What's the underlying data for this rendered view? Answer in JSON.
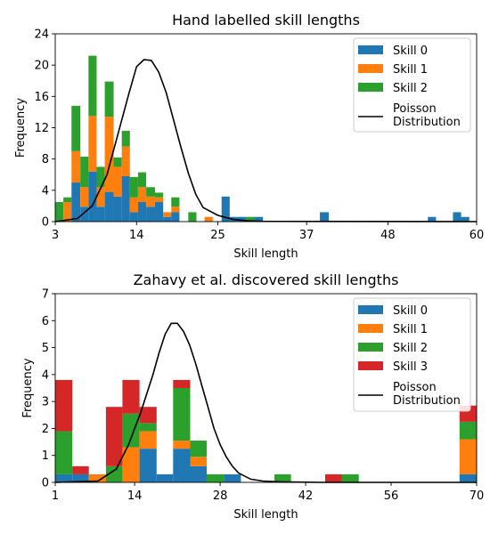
{
  "chart_data": [
    {
      "type": "bar",
      "stacked": true,
      "title": "Hand labelled skill lengths",
      "xlabel": "Skill length",
      "ylabel": "Frequency",
      "xlim": [
        3,
        60
      ],
      "ylim": [
        0,
        24
      ],
      "xticks": [
        "3",
        "14",
        "25",
        "37",
        "48",
        "60"
      ],
      "yticks": [
        "0",
        "4",
        "8",
        "12",
        "16",
        "20",
        "24"
      ],
      "legend_position": "top-right",
      "legend": [
        "Skill 0",
        "Skill 1",
        "Skill 2",
        "Poisson\nDistribution"
      ],
      "bins": [
        {
          "x0": 3.0,
          "x1": 4.1,
          "values": [
            0,
            0,
            2.5
          ]
        },
        {
          "x0": 4.1,
          "x1": 5.2,
          "values": [
            0,
            2.5,
            0.6
          ]
        },
        {
          "x0": 5.2,
          "x1": 6.4,
          "values": [
            5.0,
            4.0,
            5.8
          ]
        },
        {
          "x0": 6.4,
          "x1": 7.5,
          "values": [
            1.9,
            2.5,
            3.9
          ]
        },
        {
          "x0": 7.5,
          "x1": 8.6,
          "values": [
            6.4,
            7.1,
            7.7
          ]
        },
        {
          "x0": 8.6,
          "x1": 9.7,
          "values": [
            1.9,
            2.5,
            2.6
          ]
        },
        {
          "x0": 9.7,
          "x1": 10.9,
          "values": [
            3.8,
            9.6,
            4.5
          ]
        },
        {
          "x0": 10.9,
          "x1": 12.0,
          "values": [
            3.2,
            3.8,
            1.2
          ]
        },
        {
          "x0": 12.0,
          "x1": 13.1,
          "values": [
            5.8,
            3.8,
            2.0
          ]
        },
        {
          "x0": 13.1,
          "x1": 14.2,
          "values": [
            1.2,
            1.9,
            2.6
          ]
        },
        {
          "x0": 14.2,
          "x1": 15.3,
          "values": [
            2.5,
            1.9,
            1.9
          ]
        },
        {
          "x0": 15.3,
          "x1": 16.5,
          "values": [
            1.9,
            1.3,
            1.2
          ]
        },
        {
          "x0": 16.5,
          "x1": 17.6,
          "values": [
            2.5,
            0.6,
            0.6
          ]
        },
        {
          "x0": 17.6,
          "x1": 18.7,
          "values": [
            0.6,
            0.6,
            0
          ]
        },
        {
          "x0": 18.7,
          "x1": 19.8,
          "values": [
            1.2,
            0.7,
            1.2
          ]
        },
        {
          "x0": 19.8,
          "x1": 21.0,
          "values": [
            0,
            0,
            0
          ]
        },
        {
          "x0": 21.0,
          "x1": 22.1,
          "values": [
            0,
            0,
            1.2
          ]
        },
        {
          "x0": 22.1,
          "x1": 23.2,
          "values": [
            0,
            0,
            0
          ]
        },
        {
          "x0": 23.2,
          "x1": 24.3,
          "values": [
            0,
            0.6,
            0
          ]
        },
        {
          "x0": 24.3,
          "x1": 25.5,
          "values": [
            0,
            0,
            0
          ]
        },
        {
          "x0": 25.5,
          "x1": 26.6,
          "values": [
            3.2,
            0,
            0
          ]
        },
        {
          "x0": 26.6,
          "x1": 27.7,
          "values": [
            0.6,
            0,
            0
          ]
        },
        {
          "x0": 27.7,
          "x1": 28.8,
          "values": [
            0.6,
            0,
            0
          ]
        },
        {
          "x0": 28.8,
          "x1": 30.0,
          "values": [
            0,
            0,
            0.6
          ]
        },
        {
          "x0": 30.0,
          "x1": 31.1,
          "values": [
            0.6,
            0,
            0
          ]
        },
        {
          "x0": 31.1,
          "x1": 38.8,
          "values": [
            0,
            0,
            0
          ]
        },
        {
          "x0": 38.8,
          "x1": 40.0,
          "values": [
            1.2,
            0,
            0
          ]
        },
        {
          "x0": 40.0,
          "x1": 53.4,
          "values": [
            0,
            0,
            0
          ]
        },
        {
          "x0": 53.4,
          "x1": 54.5,
          "values": [
            0.6,
            0,
            0
          ]
        },
        {
          "x0": 54.5,
          "x1": 56.8,
          "values": [
            0,
            0,
            0
          ]
        },
        {
          "x0": 56.8,
          "x1": 57.9,
          "values": [
            1.2,
            0,
            0
          ]
        },
        {
          "x0": 57.9,
          "x1": 59.0,
          "values": [
            0.6,
            0,
            0
          ]
        }
      ],
      "poisson": {
        "x": [
          3,
          6,
          8,
          10,
          11,
          12,
          13,
          14,
          15,
          16,
          17,
          18,
          19,
          20,
          21,
          22,
          23,
          25,
          27,
          29,
          31,
          60
        ],
        "y": [
          0,
          0.4,
          2.0,
          6.0,
          9.5,
          13.0,
          16.5,
          19.8,
          20.7,
          20.6,
          19.1,
          16.5,
          13.0,
          9.5,
          6.2,
          3.5,
          1.8,
          0.8,
          0.3,
          0.1,
          0.03,
          0
        ]
      }
    },
    {
      "type": "bar",
      "stacked": true,
      "title": "Zahavy et al. discovered skill lengths",
      "xlabel": "Skill length",
      "ylabel": "Frequency",
      "xlim": [
        1,
        70
      ],
      "ylim": [
        0,
        7
      ],
      "xticks": [
        "1",
        "14",
        "28",
        "42",
        "56",
        "70"
      ],
      "yticks": [
        "0",
        "1",
        "2",
        "3",
        "4",
        "5",
        "6",
        "7"
      ],
      "legend_position": "top-right",
      "legend": [
        "Skill 0",
        "Skill 1",
        "Skill 2",
        "Skill 3",
        "Poisson\nDistribution"
      ],
      "bins": [
        {
          "x0": 1.0,
          "x1": 3.8,
          "values": [
            0.3,
            0,
            1.6,
            1.9
          ]
        },
        {
          "x0": 3.8,
          "x1": 6.5,
          "values": [
            0.3,
            0,
            0,
            0.3
          ]
        },
        {
          "x0": 6.5,
          "x1": 9.3,
          "values": [
            0,
            0.3,
            0,
            0
          ]
        },
        {
          "x0": 9.3,
          "x1": 12.0,
          "values": [
            0,
            0,
            0.6,
            2.2
          ]
        },
        {
          "x0": 12.0,
          "x1": 14.8,
          "values": [
            0,
            1.3,
            1.25,
            1.25
          ]
        },
        {
          "x0": 14.8,
          "x1": 17.6,
          "values": [
            1.25,
            0.65,
            0.3,
            0.6
          ]
        },
        {
          "x0": 17.6,
          "x1": 20.3,
          "values": [
            0.3,
            0,
            0,
            0
          ]
        },
        {
          "x0": 20.3,
          "x1": 23.1,
          "values": [
            1.25,
            0.3,
            1.95,
            0.3
          ]
        },
        {
          "x0": 23.1,
          "x1": 25.8,
          "values": [
            0.6,
            0.35,
            0.6,
            0
          ]
        },
        {
          "x0": 25.8,
          "x1": 28.6,
          "values": [
            0,
            0,
            0.3,
            0
          ]
        },
        {
          "x0": 28.6,
          "x1": 31.4,
          "values": [
            0.3,
            0,
            0,
            0
          ]
        },
        {
          "x0": 31.4,
          "x1": 36.9,
          "values": [
            0,
            0,
            0,
            0
          ]
        },
        {
          "x0": 36.9,
          "x1": 39.6,
          "values": [
            0,
            0,
            0.3,
            0
          ]
        },
        {
          "x0": 39.6,
          "x1": 45.2,
          "values": [
            0,
            0,
            0,
            0
          ]
        },
        {
          "x0": 45.2,
          "x1": 47.9,
          "values": [
            0,
            0,
            0,
            0.3
          ]
        },
        {
          "x0": 47.9,
          "x1": 50.7,
          "values": [
            0,
            0,
            0.3,
            0
          ]
        },
        {
          "x0": 50.7,
          "x1": 67.2,
          "values": [
            0,
            0,
            0,
            0
          ]
        },
        {
          "x0": 67.2,
          "x1": 70.0,
          "values": [
            0.3,
            1.3,
            0.65,
            0.6
          ]
        }
      ],
      "poisson": {
        "x": [
          1,
          8,
          11,
          13,
          15,
          17,
          18,
          19,
          20,
          21,
          22,
          23,
          24,
          25,
          26,
          27,
          28,
          29,
          30,
          31,
          33,
          35,
          38,
          41,
          45,
          70
        ],
        "y": [
          0,
          0.05,
          0.5,
          1.4,
          2.6,
          4.0,
          4.8,
          5.5,
          5.9,
          5.9,
          5.6,
          5.1,
          4.4,
          3.6,
          2.8,
          2.0,
          1.4,
          0.95,
          0.6,
          0.35,
          0.12,
          0.05,
          0.02,
          0.01,
          0,
          0
        ]
      }
    }
  ],
  "colors": {
    "skill0": "#1f77b4",
    "skill1": "#ff7f0e",
    "skill2": "#2ca02c",
    "skill3": "#d62728",
    "poisson": "#000000",
    "legend_border": "#cccccc"
  }
}
